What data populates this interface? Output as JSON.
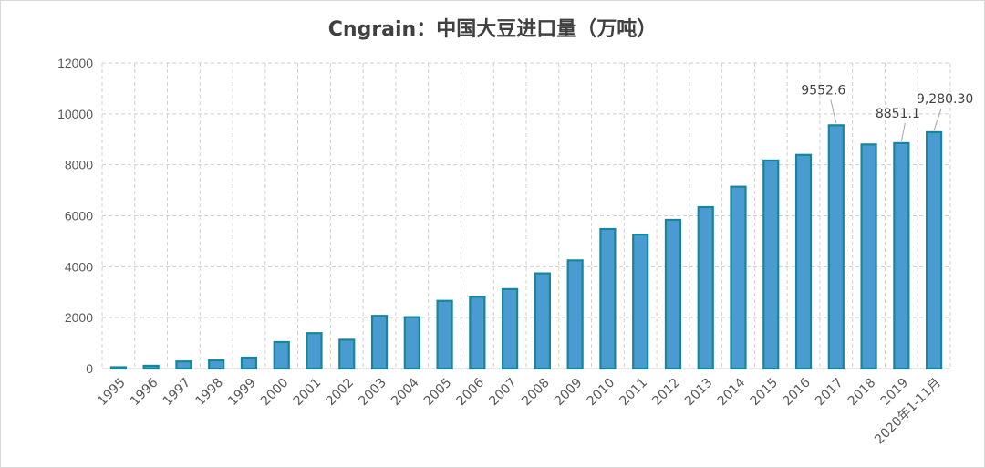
{
  "chart_data": {
    "type": "bar",
    "title": "Cngrain：中国大豆进口量（万吨）",
    "xlabel": "",
    "ylabel": "",
    "ylim": [
      0,
      12000
    ],
    "yticks": [
      0,
      2000,
      4000,
      6000,
      8000,
      10000,
      12000
    ],
    "grid": true,
    "categories": [
      "1995",
      "1996",
      "1997",
      "1998",
      "1999",
      "2000",
      "2001",
      "2002",
      "2003",
      "2004",
      "2005",
      "2006",
      "2007",
      "2008",
      "2009",
      "2010",
      "2011",
      "2012",
      "2013",
      "2014",
      "2015",
      "2016",
      "2017",
      "2018",
      "2019",
      "2020年1-11月"
    ],
    "values": [
      30,
      110,
      280,
      320,
      430,
      1040,
      1390,
      1130,
      2070,
      2020,
      2660,
      2820,
      3120,
      3740,
      4250,
      5480,
      5260,
      5840,
      6340,
      7140,
      8170,
      8390,
      9552.6,
      8800,
      8851.1,
      9280.3
    ],
    "data_labels": [
      {
        "index": 22,
        "text": "9552.6"
      },
      {
        "index": 24,
        "text": "8851.1"
      },
      {
        "index": 25,
        "text": "9,280.30"
      }
    ],
    "colors": {
      "bar_fill": "#4a9bd0",
      "bar_stroke": "#17869a",
      "grid": "#d0d0d0",
      "label_line": "#a6a6a6"
    }
  }
}
